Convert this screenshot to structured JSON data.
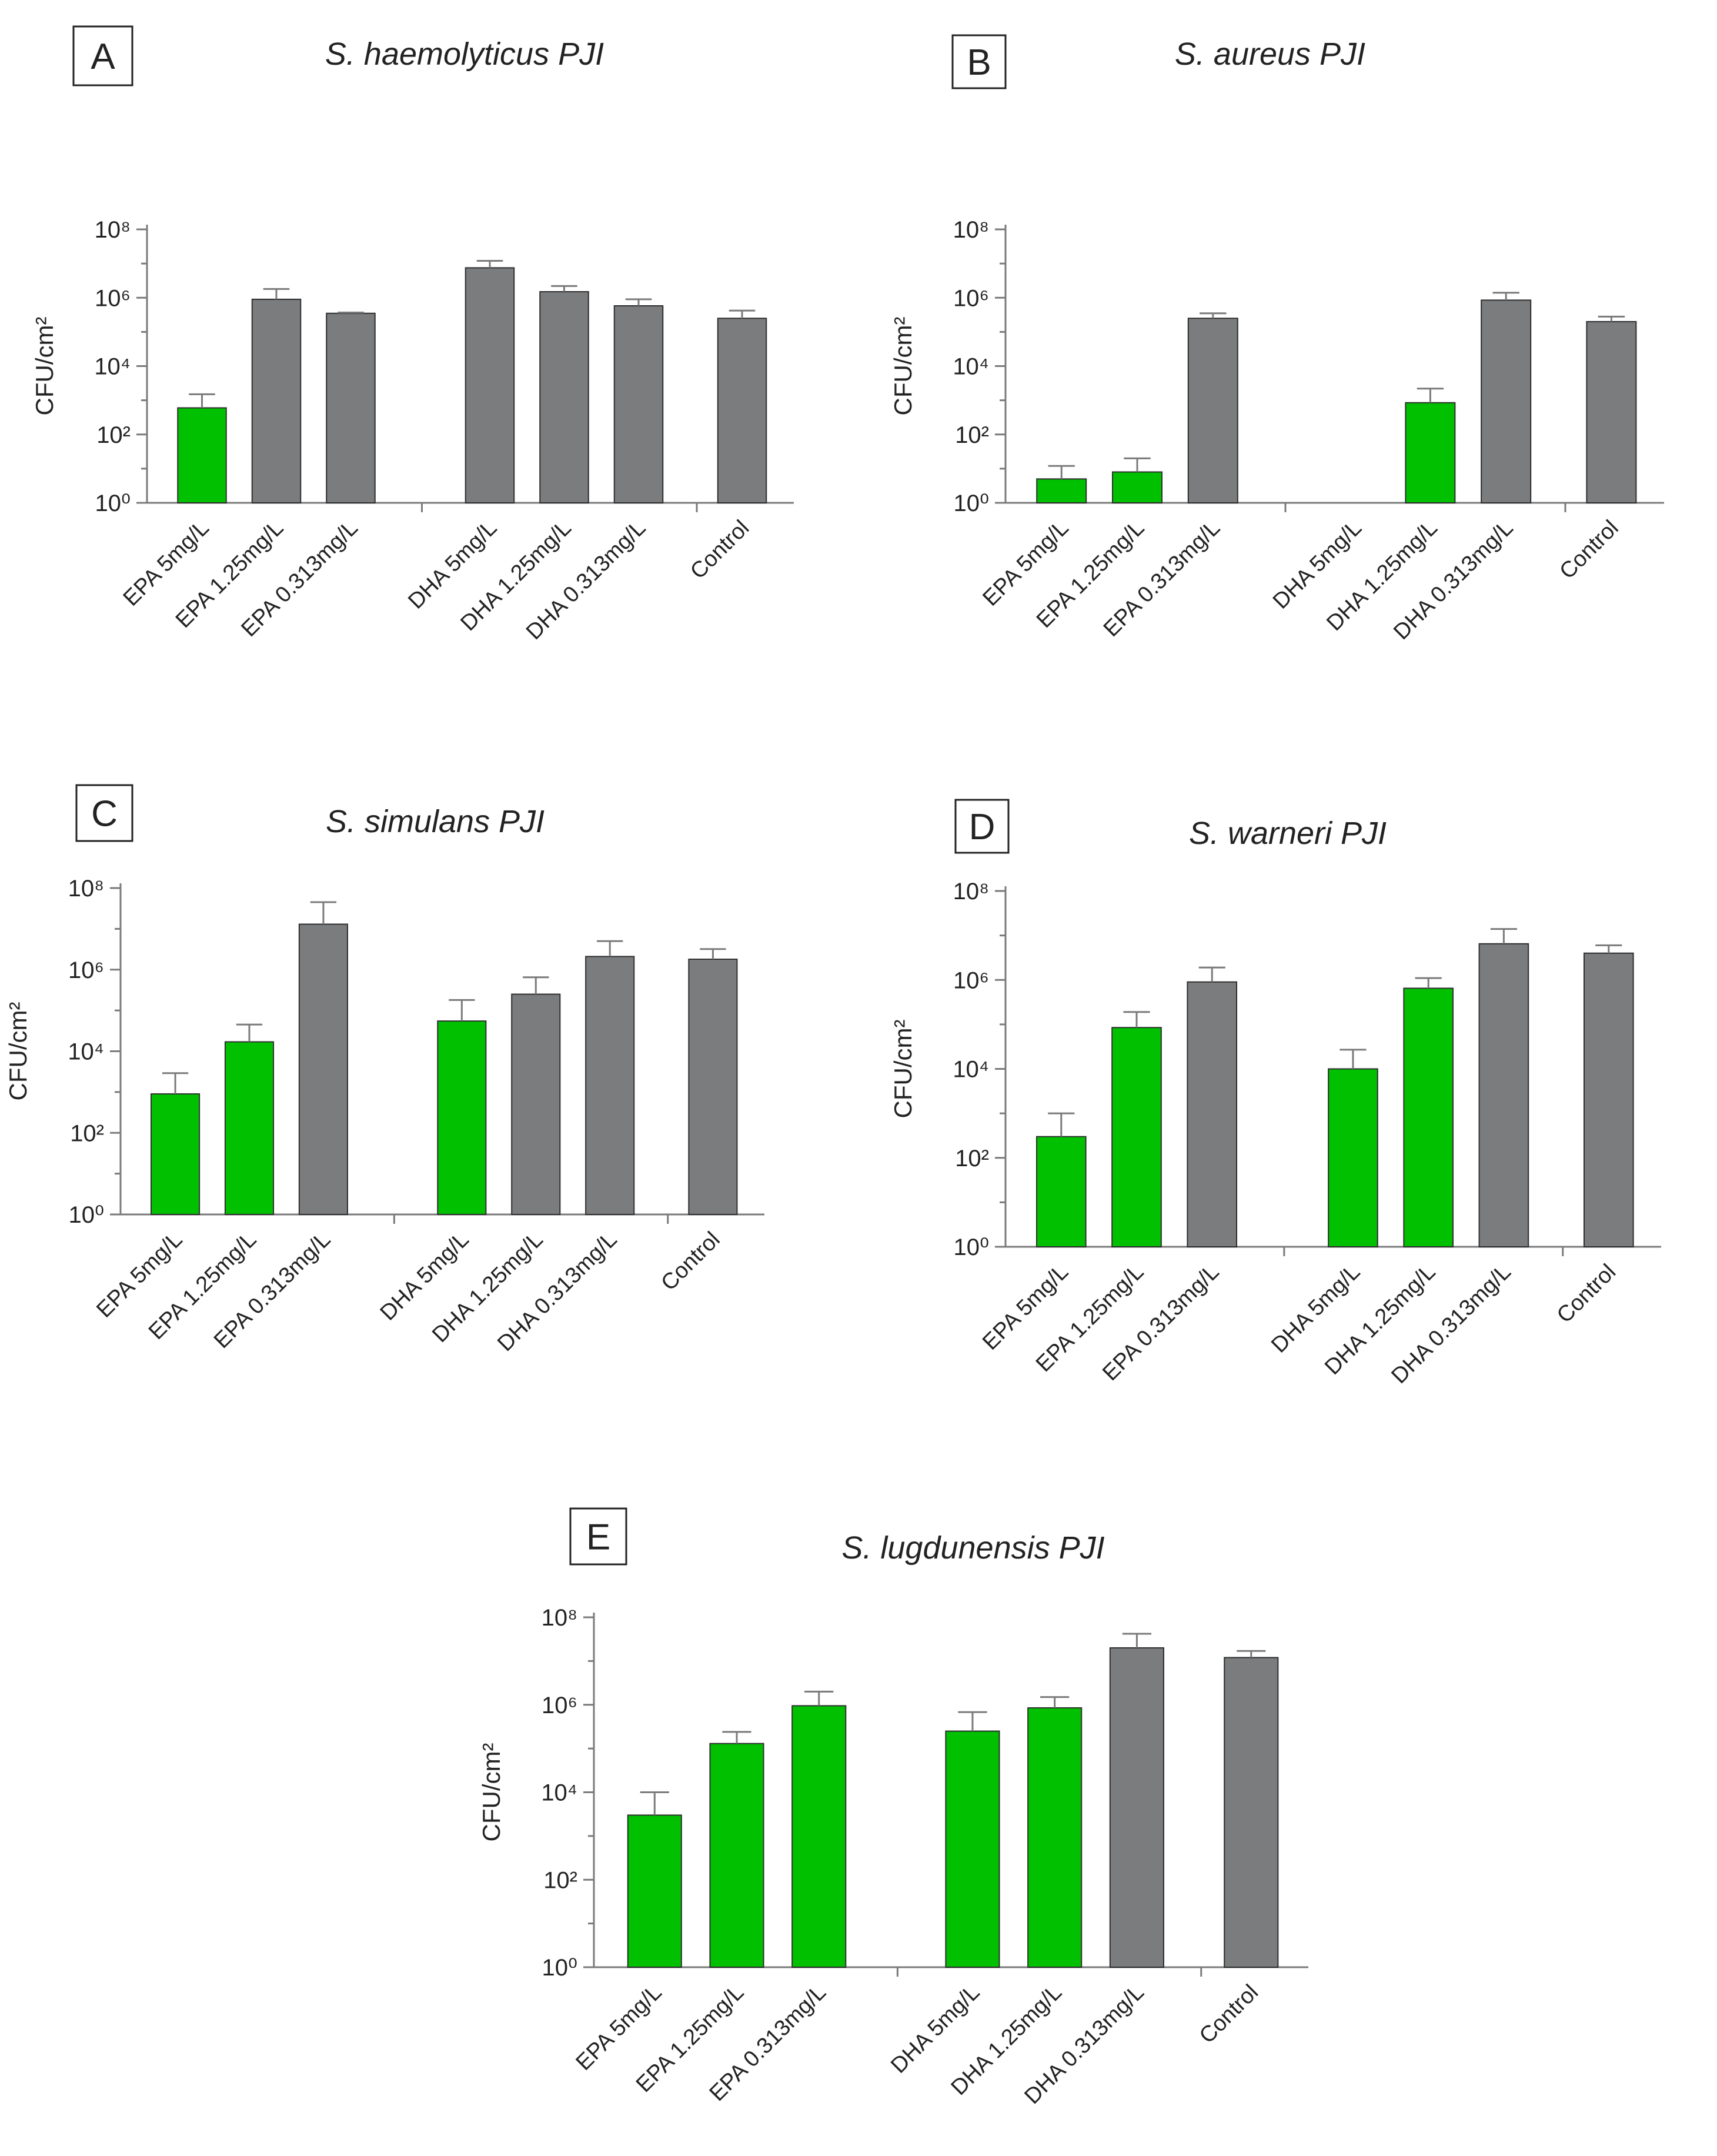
{
  "chart_data": [
    {
      "type": "bar",
      "panel": "A",
      "title": "S. haemolyticus PJI",
      "ylabel": "CFU/cm²",
      "yscale": "log",
      "ylim": [
        1,
        100000000
      ],
      "yticks": [
        "10⁰",
        "10²",
        "10⁴",
        "10⁶",
        "10⁸"
      ],
      "categories": [
        "EPA 5mg/L",
        "EPA 1.25mg/L",
        "EPA 0.313mg/L",
        "DHA 5mg/L",
        "DHA 1.25mg/L",
        "DHA 0.313mg/L",
        "Control"
      ],
      "values": [
        600,
        900000,
        350000,
        7500000,
        1500000,
        580000,
        250000
      ],
      "errors_upper": [
        1500,
        1800000,
        370000,
        12000000,
        2200000,
        900000,
        420000
      ],
      "highlight": [
        true,
        false,
        false,
        false,
        false,
        false,
        false
      ]
    },
    {
      "type": "bar",
      "panel": "B",
      "title": "S. aureus PJI",
      "ylabel": "CFU/cm²",
      "yscale": "log",
      "ylim": [
        1,
        100000000
      ],
      "yticks": [
        "10⁰",
        "10²",
        "10⁴",
        "10⁶",
        "10⁸"
      ],
      "categories": [
        "EPA 5mg/L",
        "EPA 1.25mg/L",
        "EPA 0.313mg/L",
        "DHA 5mg/L",
        "DHA 1.25mg/L",
        "DHA 0.313mg/L",
        "Control"
      ],
      "values": [
        5,
        8,
        250000,
        null,
        850,
        850000,
        200000
      ],
      "errors_upper": [
        12,
        20,
        350000,
        null,
        2200,
        1400000,
        280000
      ],
      "highlight": [
        true,
        true,
        false,
        false,
        true,
        false,
        false
      ]
    },
    {
      "type": "bar",
      "panel": "C",
      "title": "S. simulans PJI",
      "ylabel": "CFU/cm²",
      "yscale": "log",
      "ylim": [
        1,
        100000000
      ],
      "yticks": [
        "10⁰",
        "10²",
        "10⁴",
        "10⁶",
        "10⁸"
      ],
      "categories": [
        "EPA 5mg/L",
        "EPA 1.25mg/L",
        "EPA 0.313mg/L",
        "DHA 5mg/L",
        "DHA 1.25mg/L",
        "DHA 0.313mg/L",
        "Control"
      ],
      "values": [
        900,
        17000,
        13000000,
        55000,
        250000,
        2100000,
        1800000
      ],
      "errors_upper": [
        2900,
        45000,
        45000000,
        180000,
        650000,
        5000000,
        3200000
      ],
      "highlight": [
        true,
        true,
        false,
        true,
        false,
        false,
        false
      ]
    },
    {
      "type": "bar",
      "panel": "D",
      "title": "S. warneri PJI",
      "ylabel": "CFU/cm²",
      "yscale": "log",
      "ylim": [
        1,
        100000000
      ],
      "yticks": [
        "10⁰",
        "10²",
        "10⁴",
        "10⁶",
        "10⁸"
      ],
      "categories": [
        "EPA 5mg/L",
        "EPA 1.25mg/L",
        "EPA 0.313mg/L",
        "DHA 5mg/L",
        "DHA 1.25mg/L",
        "DHA 0.313mg/L",
        "Control"
      ],
      "values": [
        300,
        85000,
        900000,
        10000,
        650000,
        6500000,
        4000000
      ],
      "errors_upper": [
        1000,
        190000,
        1900000,
        27000,
        1100000,
        14000000,
        6000000
      ],
      "highlight": [
        true,
        true,
        false,
        true,
        true,
        false,
        false
      ]
    },
    {
      "type": "bar",
      "panel": "E",
      "title": "S. lugdunensis PJI",
      "ylabel": "CFU/cm²",
      "yscale": "log",
      "ylim": [
        1,
        100000000
      ],
      "yticks": [
        "10⁰",
        "10²",
        "10⁴",
        "10⁶",
        "10⁸"
      ],
      "categories": [
        "EPA 5mg/L",
        "EPA 1.25mg/L",
        "EPA 0.313mg/L",
        "DHA 5mg/L",
        "DHA 1.25mg/L",
        "DHA 0.313mg/L",
        "Control"
      ],
      "values": [
        3000,
        130000,
        950000,
        250000,
        850000,
        20000000,
        12000000
      ],
      "errors_upper": [
        10000,
        240000,
        2000000,
        680000,
        1500000,
        42000000,
        17000000
      ],
      "highlight": [
        true,
        true,
        true,
        true,
        true,
        false,
        false
      ]
    }
  ],
  "colors": {
    "highlight_bar": "#00c000",
    "normal_bar": "#7b7c7e",
    "bar_edge": "#2e2e2e",
    "axis": "#7a7a7a"
  }
}
